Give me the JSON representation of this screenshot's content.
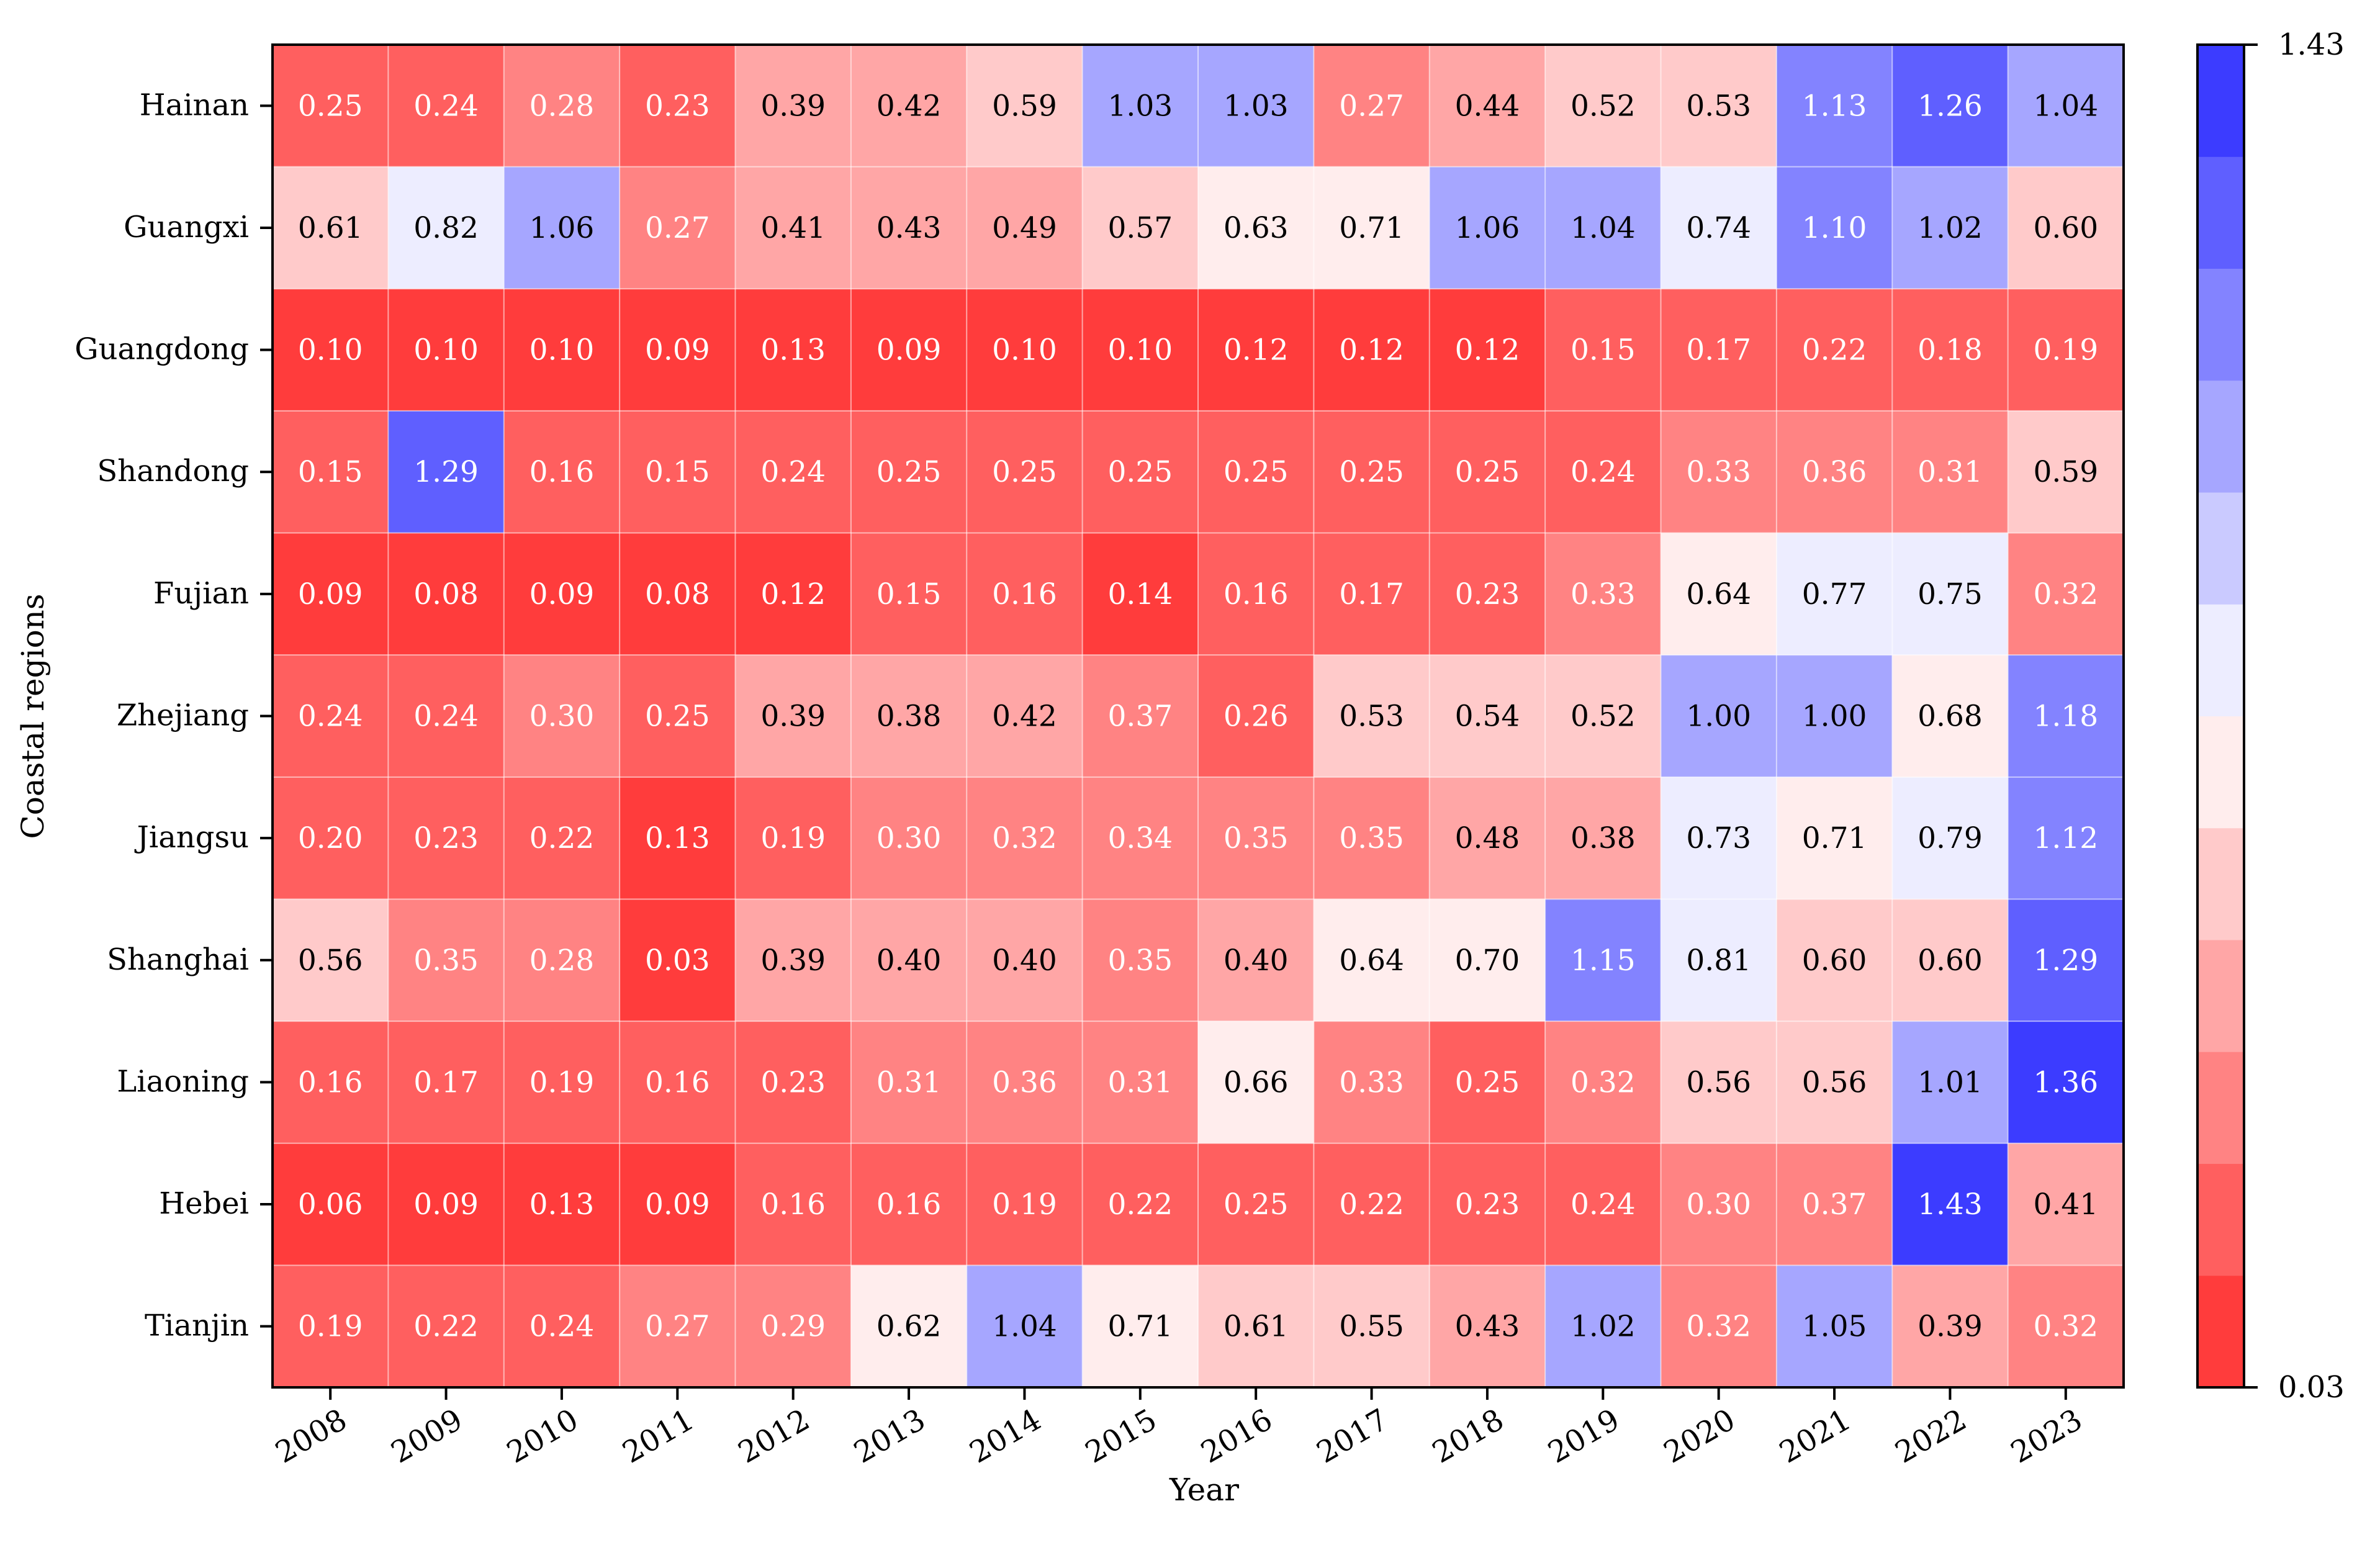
{
  "chart_data": {
    "type": "heatmap",
    "title": "",
    "xlabel": "Year",
    "ylabel": "Coastal regions",
    "x": [
      "2008",
      "2009",
      "2010",
      "2011",
      "2012",
      "2013",
      "2014",
      "2015",
      "2016",
      "2017",
      "2018",
      "2019",
      "2020",
      "2021",
      "2022",
      "2023"
    ],
    "y": [
      "Hainan",
      "Guangxi",
      "Guangdong",
      "Shandong",
      "Fujian",
      "Zhejiang",
      "Jiangsu",
      "Shanghai",
      "Liaoning",
      "Hebei",
      "Tianjin"
    ],
    "values": [
      [
        "0.25",
        "0.24",
        "0.28",
        "0.23",
        "0.39",
        "0.42",
        "0.59",
        "1.03",
        "1.03",
        "0.27",
        "0.44",
        "0.52",
        "0.53",
        "1.13",
        "1.26",
        "1.04"
      ],
      [
        "0.61",
        "0.82",
        "1.06",
        "0.27",
        "0.41",
        "0.43",
        "0.49",
        "0.57",
        "0.63",
        "0.71",
        "1.06",
        "1.04",
        "0.74",
        "1.10",
        "1.02",
        "0.60"
      ],
      [
        "0.10",
        "0.10",
        "0.10",
        "0.09",
        "0.13",
        "0.09",
        "0.10",
        "0.10",
        "0.12",
        "0.12",
        "0.12",
        "0.15",
        "0.17",
        "0.22",
        "0.18",
        "0.19"
      ],
      [
        "0.15",
        "1.29",
        "0.16",
        "0.15",
        "0.24",
        "0.25",
        "0.25",
        "0.25",
        "0.25",
        "0.25",
        "0.25",
        "0.24",
        "0.33",
        "0.36",
        "0.31",
        "0.59"
      ],
      [
        "0.09",
        "0.08",
        "0.09",
        "0.08",
        "0.12",
        "0.15",
        "0.16",
        "0.14",
        "0.16",
        "0.17",
        "0.23",
        "0.33",
        "0.64",
        "0.77",
        "0.75",
        "0.32"
      ],
      [
        "0.24",
        "0.24",
        "0.30",
        "0.25",
        "0.39",
        "0.38",
        "0.42",
        "0.37",
        "0.26",
        "0.53",
        "0.54",
        "0.52",
        "1.00",
        "1.00",
        "0.68",
        "1.18"
      ],
      [
        "0.20",
        "0.23",
        "0.22",
        "0.13",
        "0.19",
        "0.30",
        "0.32",
        "0.34",
        "0.35",
        "0.35",
        "0.48",
        "0.38",
        "0.73",
        "0.71",
        "0.79",
        "1.12"
      ],
      [
        "0.56",
        "0.35",
        "0.28",
        "0.03",
        "0.39",
        "0.40",
        "0.40",
        "0.35",
        "0.40",
        "0.64",
        "0.70",
        "1.15",
        "0.81",
        "0.60",
        "0.60",
        "1.29"
      ],
      [
        "0.16",
        "0.17",
        "0.19",
        "0.16",
        "0.23",
        "0.31",
        "0.36",
        "0.31",
        "0.66",
        "0.33",
        "0.25",
        "0.32",
        "0.56",
        "0.56",
        "1.01",
        "1.36"
      ],
      [
        "0.06",
        "0.09",
        "0.13",
        "0.09",
        "0.16",
        "0.16",
        "0.19",
        "0.22",
        "0.25",
        "0.22",
        "0.23",
        "0.24",
        "0.30",
        "0.37",
        "1.43",
        "0.41"
      ],
      [
        "0.19",
        "0.22",
        "0.24",
        "0.27",
        "0.29",
        "0.62",
        "1.04",
        "0.71",
        "0.61",
        "0.55",
        "0.43",
        "1.02",
        "0.32",
        "1.05",
        "0.39",
        "0.32"
      ]
    ],
    "colorbar": {
      "min": 0.03,
      "max": 1.43,
      "min_label": "0.03",
      "max_label": "1.43",
      "levels": 12,
      "colormap": "bwr_r",
      "low_color": "#ff2a2a",
      "mid_color": "#ffffff",
      "high_color": "#2a2aff"
    }
  }
}
